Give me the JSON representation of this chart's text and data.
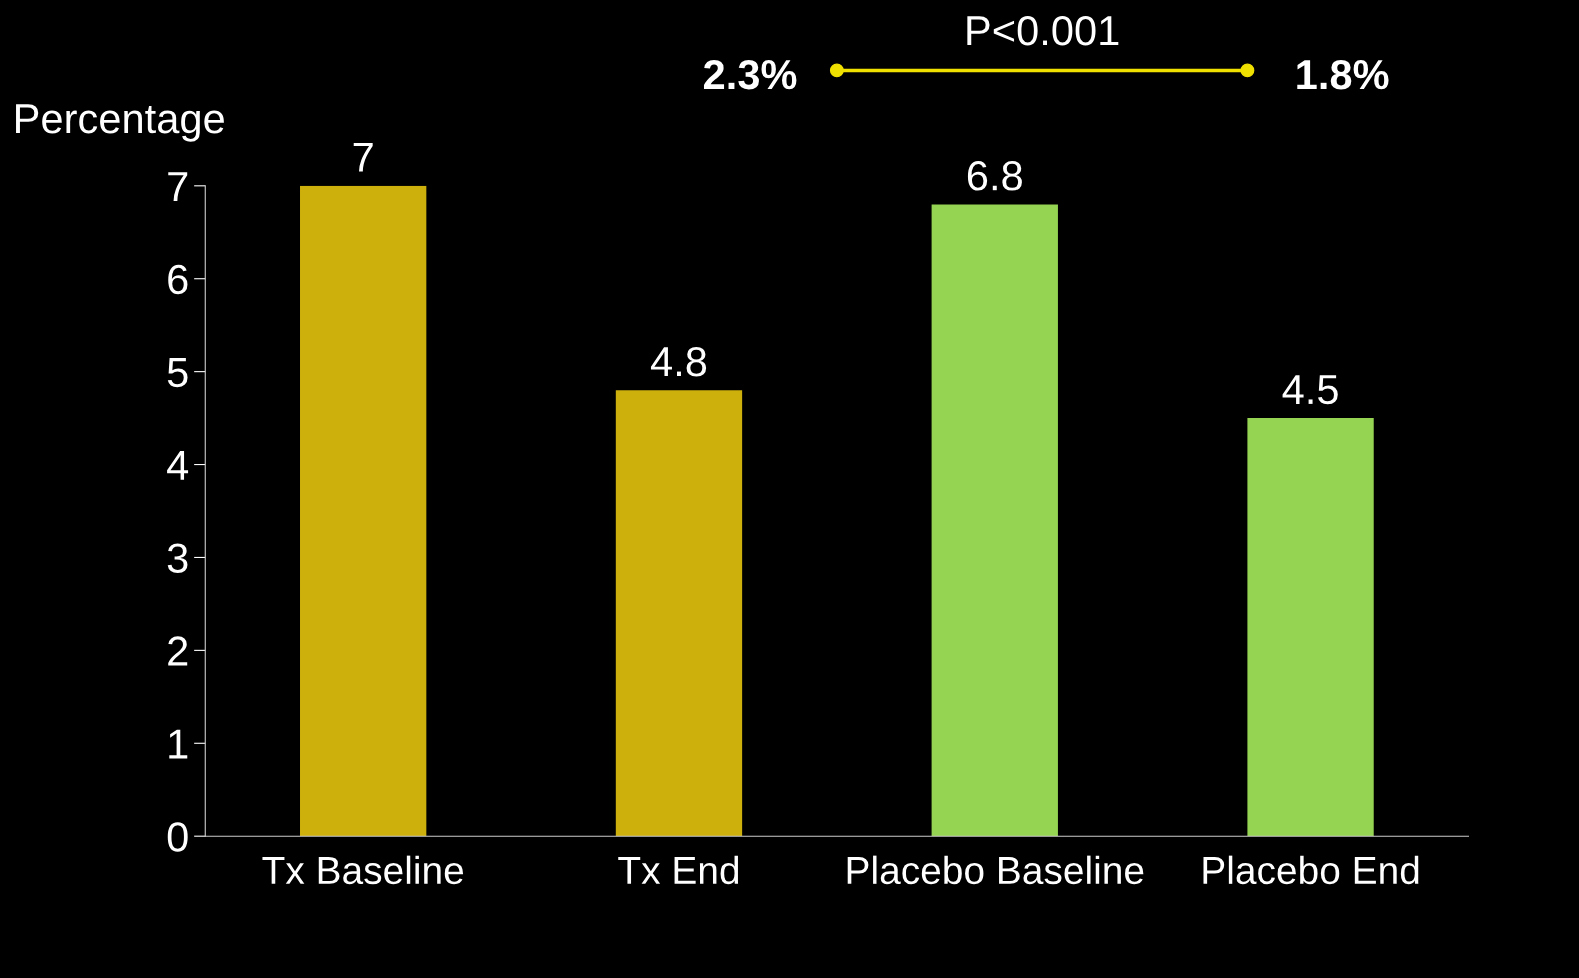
{
  "chart_data": {
    "type": "bar",
    "ylabel": "Percentage",
    "categories": [
      "Tx Baseline",
      "Tx End",
      "Placebo Baseline",
      "Placebo End"
    ],
    "values": [
      7,
      4.8,
      6.8,
      4.5
    ],
    "colors": [
      "#cdb00c",
      "#cdb00c",
      "#95d452",
      "#95d452"
    ],
    "ylim": [
      0,
      7
    ],
    "yticks": [
      0,
      1,
      2,
      3,
      4,
      5,
      6,
      7
    ],
    "grid": false,
    "data_labels": true,
    "annotations": [
      "P<0.001",
      "2.3%",
      "1.8%"
    ]
  }
}
